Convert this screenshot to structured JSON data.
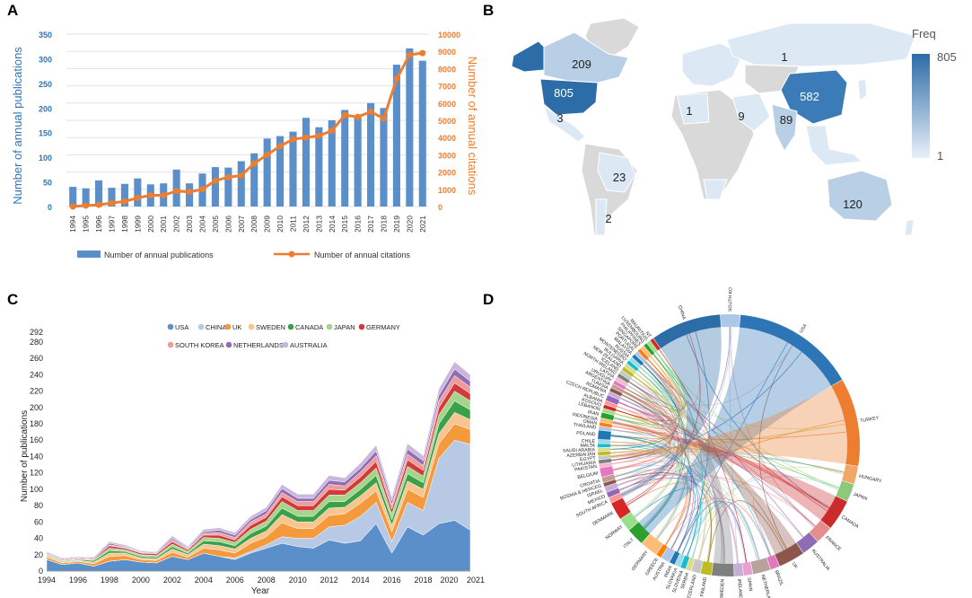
{
  "panels": {
    "a": {
      "label": "A"
    },
    "b": {
      "label": "B"
    },
    "c": {
      "label": "C"
    },
    "d": {
      "label": "D"
    }
  },
  "colors": {
    "bar": "#5b8fc9",
    "line": "#ec7d31",
    "axis_left": "#2e75b6",
    "axis_right": "#ec7d31",
    "map_land": "#d9d9d9",
    "map_low": "#dce9f5",
    "map_high": "#2c6ca7",
    "ocean": "#ffffff"
  },
  "chart_data": [
    {
      "id": "A",
      "type": "bar+line",
      "title": "",
      "categories": [
        "1994",
        "1995",
        "1996",
        "1997",
        "1998",
        "1999",
        "2000",
        "2001",
        "2002",
        "2003",
        "2004",
        "2005",
        "2006",
        "2007",
        "2008",
        "2009",
        "2010",
        "2011",
        "2012",
        "2013",
        "2014",
        "2015",
        "2016",
        "2017",
        "2018",
        "2019",
        "2020",
        "2021"
      ],
      "series": [
        {
          "name": "Number of annual publications",
          "kind": "bar",
          "axis": "left",
          "values": [
            40,
            37,
            53,
            38,
            46,
            57,
            45,
            47,
            75,
            47,
            67,
            80,
            79,
            92,
            108,
            138,
            143,
            152,
            180,
            161,
            175,
            196,
            183,
            210,
            200,
            288,
            321,
            296
          ]
        },
        {
          "name": "Number of annual citations",
          "kind": "line",
          "axis": "right",
          "values": [
            0,
            50,
            100,
            200,
            300,
            500,
            650,
            650,
            900,
            850,
            1000,
            1500,
            1700,
            1800,
            2500,
            3000,
            3500,
            3900,
            4000,
            4100,
            4400,
            5300,
            5200,
            5500,
            5100,
            7400,
            8800,
            8900
          ]
        }
      ],
      "ylabel_left": "Number of  annual publications",
      "ylabel_right": "Number of annual citations",
      "ylim_left": [
        0,
        350
      ],
      "ylim_right": [
        0,
        10000
      ],
      "yticks_left": [
        "0",
        "50",
        "100",
        "150",
        "200",
        "250",
        "300",
        "350"
      ],
      "yticks_right": [
        "0",
        "1000",
        "2000",
        "3000",
        "4000",
        "5000",
        "6000",
        "7000",
        "8000",
        "9000",
        "10000"
      ],
      "legend": [
        "Number of annual publications",
        "Number of annual citations"
      ],
      "grid": true
    },
    {
      "id": "B",
      "type": "choropleth",
      "legend_title": "Freq",
      "legend_max": "805",
      "legend_min": "1",
      "region_labels": [
        {
          "region": "USA",
          "value": "805"
        },
        {
          "region": "Canada",
          "value": "209"
        },
        {
          "region": "Mexico",
          "value": "3"
        },
        {
          "region": "Russia",
          "value": "1"
        },
        {
          "region": "China",
          "value": "582"
        },
        {
          "region": "Algeria",
          "value": "1"
        },
        {
          "region": "Saudi Arabia",
          "value": "9"
        },
        {
          "region": "India",
          "value": "89"
        },
        {
          "region": "Brazil",
          "value": "23"
        },
        {
          "region": "Argentina",
          "value": "2"
        },
        {
          "region": "Australia",
          "value": "120"
        }
      ]
    },
    {
      "id": "C",
      "type": "area",
      "stacked": true,
      "xlabel": "Year",
      "ylabel": "Number of publications",
      "ylim": [
        0,
        292
      ],
      "yticks": [
        "0",
        "20",
        "40",
        "60",
        "80",
        "100",
        "120",
        "140",
        "160",
        "180",
        "200",
        "220",
        "240",
        "260",
        "280",
        "292"
      ],
      "xticks": [
        "1994",
        "1996",
        "1998",
        "2000",
        "2002",
        "2004",
        "2006",
        "2008",
        "2010",
        "2012",
        "2014",
        "2016",
        "2018",
        "2020",
        "2021"
      ],
      "x": [
        1994,
        1995,
        1996,
        1997,
        1998,
        1999,
        2000,
        2001,
        2002,
        2003,
        2004,
        2005,
        2006,
        2007,
        2008,
        2009,
        2010,
        2011,
        2012,
        2013,
        2014,
        2015,
        2016,
        2017,
        2018,
        2019,
        2020,
        2021
      ],
      "series": [
        {
          "name": "USA",
          "color": "#5b8fc9",
          "values": [
            14,
            8,
            10,
            6,
            12,
            14,
            11,
            10,
            18,
            14,
            22,
            18,
            14,
            22,
            28,
            34,
            30,
            28,
            38,
            34,
            37,
            58,
            22,
            54,
            44,
            58,
            62,
            50
          ]
        },
        {
          "name": "CHINA",
          "color": "#b8c9e6",
          "values": [
            0,
            0,
            0,
            0,
            0,
            0,
            0,
            0,
            0,
            0,
            0,
            0,
            2,
            2,
            4,
            8,
            10,
            12,
            16,
            22,
            30,
            26,
            14,
            30,
            30,
            80,
            98,
            105
          ]
        },
        {
          "name": "UK",
          "color": "#f59a3c",
          "values": [
            3,
            2,
            2,
            3,
            6,
            5,
            3,
            3,
            5,
            3,
            6,
            8,
            6,
            10,
            10,
            17,
            12,
            12,
            14,
            14,
            16,
            14,
            12,
            16,
            16,
            18,
            20,
            18
          ]
        },
        {
          "name": "SWEDEN",
          "color": "#f8c490",
          "values": [
            2,
            1,
            1,
            2,
            4,
            3,
            2,
            2,
            4,
            3,
            5,
            5,
            5,
            6,
            7,
            10,
            8,
            8,
            9,
            8,
            9,
            10,
            8,
            10,
            10,
            12,
            14,
            12
          ]
        },
        {
          "name": "CANADA",
          "color": "#3aa049",
          "values": [
            1,
            1,
            1,
            2,
            3,
            2,
            2,
            2,
            3,
            2,
            4,
            5,
            4,
            6,
            6,
            8,
            7,
            7,
            8,
            7,
            8,
            9,
            7,
            9,
            8,
            12,
            14,
            12
          ]
        },
        {
          "name": "JAPAN",
          "color": "#a4d58a",
          "values": [
            1,
            1,
            1,
            1,
            3,
            2,
            2,
            2,
            3,
            2,
            4,
            4,
            4,
            5,
            6,
            8,
            7,
            7,
            8,
            8,
            8,
            9,
            7,
            9,
            8,
            11,
            12,
            11
          ]
        },
        {
          "name": "GERMANY",
          "color": "#d13b3b",
          "values": [
            1,
            1,
            1,
            1,
            3,
            2,
            2,
            2,
            3,
            2,
            3,
            4,
            3,
            5,
            5,
            6,
            6,
            6,
            7,
            6,
            7,
            8,
            6,
            8,
            7,
            9,
            10,
            9
          ]
        },
        {
          "name": "SOUTH KOREA",
          "color": "#f09b9b",
          "values": [
            0,
            0,
            0,
            0,
            1,
            1,
            1,
            1,
            2,
            1,
            2,
            3,
            3,
            4,
            4,
            5,
            5,
            5,
            6,
            5,
            6,
            7,
            5,
            7,
            6,
            8,
            9,
            8
          ]
        },
        {
          "name": "NETHERLANDS",
          "color": "#8e6db5",
          "values": [
            1,
            1,
            1,
            1,
            2,
            1,
            1,
            1,
            2,
            1,
            2,
            3,
            3,
            3,
            4,
            5,
            4,
            4,
            5,
            5,
            5,
            6,
            5,
            6,
            6,
            7,
            8,
            7
          ]
        },
        {
          "name": "AUSTRALIA",
          "color": "#c9b7dc",
          "values": [
            1,
            1,
            1,
            1,
            2,
            2,
            1,
            1,
            3,
            2,
            3,
            3,
            3,
            4,
            4,
            5,
            5,
            5,
            6,
            5,
            6,
            7,
            5,
            7,
            6,
            8,
            9,
            8
          ]
        }
      ],
      "legend": [
        "USA",
        "CHINA",
        "UK",
        "SWEDEN",
        "CANADA",
        "JAPAN",
        "GERMANY",
        "SOUTH KOREA",
        "NETHERLANDS",
        "AUSTRALIA"
      ]
    },
    {
      "id": "D",
      "type": "chord",
      "countries": [
        {
          "name": "USA",
          "color": "#2e75b6",
          "w": 14
        },
        {
          "name": "TURKEY",
          "color": "#ec7d31",
          "w": 10
        },
        {
          "name": "HUNGARY",
          "color": "#f0a868",
          "w": 2
        },
        {
          "name": "JAPAN",
          "color": "#8cc97a",
          "w": 2
        },
        {
          "name": "CANADA",
          "color": "#cc2b2b",
          "w": 3.5
        },
        {
          "name": "FRANCE",
          "color": "#e58e8e",
          "w": 2
        },
        {
          "name": "AUSTRALIA",
          "color": "#8e6db5",
          "w": 2
        },
        {
          "name": "UK",
          "color": "#8c564b",
          "w": 3
        },
        {
          "name": "BRAZIL",
          "color": "#e377c2",
          "w": 1
        },
        {
          "name": "NETHERLANDS",
          "color": "#b8a39b",
          "w": 2
        },
        {
          "name": "SPAIN",
          "color": "#e99fd0",
          "w": 1
        },
        {
          "name": "IRELAND",
          "color": "#c5b0d5",
          "w": 1
        },
        {
          "name": "SWEDEN",
          "color": "#7f7f7f",
          "w": 2.5
        },
        {
          "name": "FINLAND",
          "color": "#bcbd22",
          "w": 1.2
        },
        {
          "name": "SWITZERLAND",
          "color": "#c7c7c7",
          "w": 1
        },
        {
          "name": "SERBIA",
          "color": "#dbdb8d",
          "w": 0.6
        },
        {
          "name": "SLOVENIA",
          "color": "#17becf",
          "w": 0.6
        },
        {
          "name": "SLOVAKIA",
          "color": "#9edae5",
          "w": 0.6
        },
        {
          "name": "INDIA",
          "color": "#1f77b4",
          "w": 0.6
        },
        {
          "name": "AUSTRIA",
          "color": "#aec7e8",
          "w": 1
        },
        {
          "name": "GREECE",
          "color": "#ff7f0e",
          "w": 0.6
        },
        {
          "name": "GERMANY",
          "color": "#ffbb78",
          "w": 2
        },
        {
          "name": "ITALY",
          "color": "#2ca02c",
          "w": 2
        },
        {
          "name": "NORWAY",
          "color": "#98df8a",
          "w": 1.5
        },
        {
          "name": "DENMARK",
          "color": "#d62728",
          "w": 2
        },
        {
          "name": "SOUTH AFRICA",
          "color": "#ff9896",
          "w": 0.6
        },
        {
          "name": "MEXICO",
          "color": "#9467bd",
          "w": 0.6
        },
        {
          "name": "ISRAEL",
          "color": "#c5b0d5",
          "w": 0.6
        },
        {
          "name": "BOSNIA & HERCEG",
          "color": "#8c564b",
          "w": 0.4
        },
        {
          "name": "CROATIA",
          "color": "#c49c94",
          "w": 0.6
        },
        {
          "name": "BELGIUM",
          "color": "#e377c2",
          "w": 1
        },
        {
          "name": "PAKISTAN",
          "color": "#f7b6d2",
          "w": 0.4
        },
        {
          "name": "LITHUANIA",
          "color": "#7f7f7f",
          "w": 0.4
        },
        {
          "name": "EGYPT",
          "color": "#c7c7c7",
          "w": 0.4
        },
        {
          "name": "AZERBAIJAN",
          "color": "#bcbd22",
          "w": 0.4
        },
        {
          "name": "SAUDI ARABIA",
          "color": "#dbdb8d",
          "w": 0.4
        },
        {
          "name": "MALTA",
          "color": "#17becf",
          "w": 0.4
        },
        {
          "name": "CHILE",
          "color": "#9edae5",
          "w": 0.4
        },
        {
          "name": "POLAND",
          "color": "#1f77b4",
          "w": 1
        },
        {
          "name": "THAILAND",
          "color": "#aec7e8",
          "w": 0.4
        },
        {
          "name": "OMAN",
          "color": "#ff7f0e",
          "w": 0.4
        },
        {
          "name": "INDONESIA",
          "color": "#ffbb78",
          "w": 0.4
        },
        {
          "name": "IRAN",
          "color": "#2ca02c",
          "w": 0.6
        },
        {
          "name": "LEBANON",
          "color": "#98df8a",
          "w": 0.4
        },
        {
          "name": "KOSOVO",
          "color": "#d62728",
          "w": 0.4
        },
        {
          "name": "ALBANIA",
          "color": "#ff9896",
          "w": 0.4
        },
        {
          "name": "CZECH REPUBLIC",
          "color": "#9467bd",
          "w": 0.6
        },
        {
          "name": "ROMANIA",
          "color": "#c5b0d5",
          "w": 0.4
        },
        {
          "name": "TUNISIA",
          "color": "#8c564b",
          "w": 0.4
        },
        {
          "name": "ARGENTINA",
          "color": "#c49c94",
          "w": 0.4
        },
        {
          "name": "URUGUAY",
          "color": "#e377c2",
          "w": 0.4
        },
        {
          "name": "LATVIA",
          "color": "#f7b6d2",
          "w": 0.4
        },
        {
          "name": "NORTH IRELAND",
          "color": "#7f7f7f",
          "w": 0.4
        },
        {
          "name": "ICELAND",
          "color": "#c7c7c7",
          "w": 0.4
        },
        {
          "name": "NEW ZEALAND",
          "color": "#bcbd22",
          "w": 0.4
        },
        {
          "name": "BULGARIA",
          "color": "#dbdb8d",
          "w": 0.4
        },
        {
          "name": "MONTENEGRO",
          "color": "#17becf",
          "w": 0.4
        },
        {
          "name": "RUSSIA",
          "color": "#9edae5",
          "w": 0.4
        },
        {
          "name": "MALAYSIA",
          "color": "#1f77b4",
          "w": 0.4
        },
        {
          "name": "PORTUGAL",
          "color": "#aec7e8",
          "w": 0.4
        },
        {
          "name": "SINGAPORE",
          "color": "#ff7f0e",
          "w": 0.4
        },
        {
          "name": "PHILIPPINES",
          "color": "#ffbb78",
          "w": 0.4
        },
        {
          "name": "LUXEMBOURG",
          "color": "#2ca02c",
          "w": 0.4
        },
        {
          "name": "MAURITIUS",
          "color": "#98df8a",
          "w": 0.4
        },
        {
          "name": "NT",
          "color": "#d62728",
          "w": 0.4
        },
        {
          "name": "CHINA",
          "color": "#2c6ca7",
          "w": 8
        },
        {
          "name": "SOUTH KOREA",
          "color": "#aec7e8",
          "w": 2.2
        }
      ]
    }
  ]
}
